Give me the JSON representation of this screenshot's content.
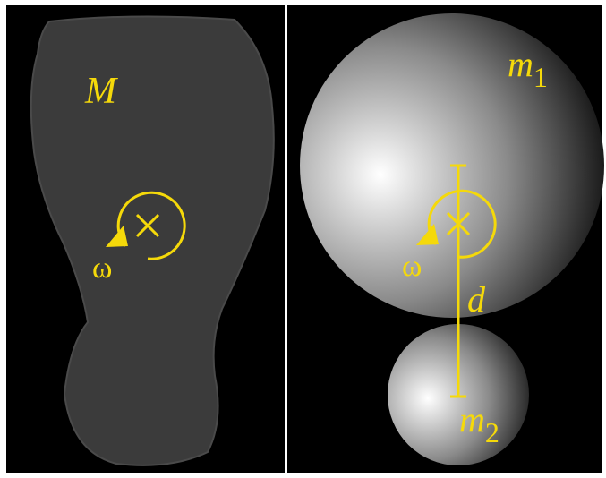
{
  "left": {
    "label": "M",
    "omega": "ω"
  },
  "right": {
    "m1": {
      "base": "m",
      "sub": "1"
    },
    "m2": {
      "base": "m",
      "sub": "2"
    },
    "distance": "d",
    "omega": "ω"
  }
}
